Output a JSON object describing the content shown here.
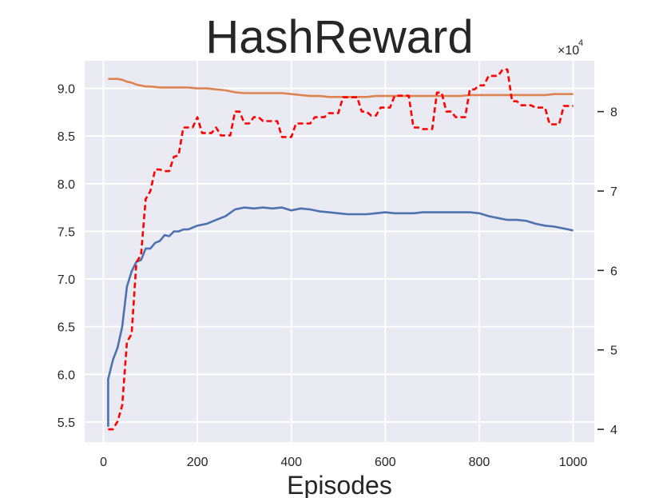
{
  "chart_data": {
    "type": "line",
    "title": "HashReward",
    "xlabel": "Episodes",
    "ylabel": "",
    "y2label": "",
    "right_axis_multiplier": "×10",
    "right_axis_multiplier_exp": "4",
    "xlim": [
      -40,
      1045
    ],
    "ylim": [
      5.29,
      9.29
    ],
    "y2lim": [
      38400,
      86400
    ],
    "xticks": [
      0,
      200,
      400,
      600,
      800,
      1000
    ],
    "yticks": [
      5.5,
      6.0,
      6.5,
      7.0,
      7.5,
      8.0,
      8.5,
      9.0
    ],
    "y2ticks": [
      40000,
      50000,
      60000,
      70000,
      80000
    ],
    "ytick_labels": [
      "5.5",
      "6.0",
      "6.5",
      "7.0",
      "7.5",
      "8.0",
      "8.5",
      "9.0"
    ],
    "y2tick_labels": [
      "4",
      "5",
      "6",
      "7",
      "8"
    ],
    "xtick_labels": [
      "0",
      "200",
      "400",
      "600",
      "800",
      "1000"
    ],
    "grid": true,
    "background": "#eaeaf2",
    "series": [
      {
        "axis": "left",
        "color": "#4c72b0",
        "style": "solid",
        "x": [
          10,
          10,
          20,
          30,
          40,
          50,
          60,
          70,
          80,
          90,
          100,
          110,
          120,
          130,
          140,
          150,
          160,
          170,
          180,
          190,
          200,
          220,
          240,
          260,
          280,
          300,
          320,
          340,
          360,
          380,
          400,
          420,
          440,
          460,
          480,
          500,
          520,
          540,
          560,
          580,
          600,
          620,
          640,
          660,
          680,
          700,
          720,
          740,
          760,
          780,
          800,
          820,
          840,
          860,
          880,
          900,
          920,
          940,
          960,
          980,
          1000
        ],
        "values": [
          5.45,
          5.95,
          6.15,
          6.28,
          6.5,
          6.92,
          7.08,
          7.18,
          7.2,
          7.32,
          7.32,
          7.38,
          7.4,
          7.46,
          7.45,
          7.5,
          7.5,
          7.52,
          7.52,
          7.54,
          7.56,
          7.58,
          7.62,
          7.66,
          7.73,
          7.75,
          7.74,
          7.75,
          7.74,
          7.75,
          7.72,
          7.74,
          7.73,
          7.71,
          7.7,
          7.69,
          7.68,
          7.68,
          7.68,
          7.69,
          7.7,
          7.69,
          7.69,
          7.69,
          7.7,
          7.7,
          7.7,
          7.7,
          7.7,
          7.7,
          7.69,
          7.66,
          7.64,
          7.62,
          7.62,
          7.61,
          7.58,
          7.56,
          7.55,
          7.53,
          7.51
        ]
      },
      {
        "axis": "left",
        "color": "#dd8452",
        "style": "solid",
        "x": [
          10,
          20,
          30,
          40,
          50,
          60,
          70,
          80,
          90,
          100,
          120,
          140,
          160,
          180,
          200,
          220,
          240,
          260,
          280,
          300,
          320,
          340,
          360,
          380,
          400,
          420,
          440,
          460,
          480,
          500,
          520,
          540,
          560,
          580,
          600,
          620,
          640,
          660,
          680,
          700,
          720,
          740,
          760,
          780,
          800,
          820,
          840,
          860,
          880,
          900,
          920,
          940,
          960,
          980,
          1000
        ],
        "values": [
          9.1,
          9.1,
          9.1,
          9.09,
          9.07,
          9.06,
          9.04,
          9.03,
          9.02,
          9.02,
          9.01,
          9.01,
          9.01,
          9.01,
          9.0,
          9.0,
          8.99,
          8.98,
          8.96,
          8.95,
          8.95,
          8.95,
          8.95,
          8.95,
          8.94,
          8.93,
          8.92,
          8.92,
          8.91,
          8.91,
          8.91,
          8.91,
          8.91,
          8.92,
          8.92,
          8.92,
          8.92,
          8.92,
          8.92,
          8.92,
          8.92,
          8.92,
          8.92,
          8.93,
          8.93,
          8.93,
          8.93,
          8.93,
          8.93,
          8.93,
          8.93,
          8.93,
          8.94,
          8.94,
          8.94
        ]
      },
      {
        "axis": "right",
        "color": "#ff0000",
        "style": "dashed",
        "x": [
          10,
          20,
          30,
          40,
          50,
          60,
          70,
          80,
          90,
          100,
          110,
          120,
          130,
          140,
          150,
          160,
          170,
          180,
          190,
          200,
          210,
          220,
          230,
          240,
          250,
          260,
          270,
          280,
          290,
          300,
          310,
          320,
          330,
          340,
          350,
          360,
          370,
          380,
          390,
          400,
          410,
          420,
          430,
          440,
          450,
          460,
          470,
          480,
          490,
          500,
          510,
          520,
          530,
          540,
          550,
          560,
          570,
          580,
          590,
          600,
          610,
          620,
          630,
          640,
          650,
          660,
          670,
          680,
          690,
          700,
          710,
          720,
          730,
          740,
          750,
          760,
          770,
          780,
          790,
          800,
          810,
          820,
          830,
          840,
          850,
          860,
          870,
          880,
          890,
          900,
          910,
          920,
          930,
          940,
          950,
          960,
          970,
          980,
          990,
          1000
        ],
        "values": [
          40000,
          40000,
          41000,
          43000,
          51000,
          52000,
          61000,
          62000,
          69000,
          70000,
          72700,
          72700,
          72500,
          72500,
          74300,
          74500,
          78000,
          78000,
          78000,
          79300,
          77300,
          77300,
          77300,
          78000,
          77000,
          77000,
          77000,
          80000,
          80000,
          78500,
          78500,
          79300,
          79300,
          78800,
          78800,
          78800,
          78800,
          76800,
          76800,
          76800,
          78500,
          78500,
          78500,
          78500,
          79300,
          79300,
          79300,
          79800,
          79800,
          79800,
          81800,
          81800,
          81800,
          81800,
          80000,
          80000,
          79500,
          79500,
          80500,
          80500,
          80500,
          82000,
          82000,
          82000,
          82000,
          78000,
          78000,
          77800,
          77800,
          77800,
          82400,
          82400,
          80000,
          80000,
          79300,
          79300,
          79300,
          82800,
          82800,
          83300,
          83300,
          84500,
          84500,
          84500,
          85300,
          85300,
          81300,
          81300,
          80800,
          80800,
          80800,
          80500,
          80500,
          80500,
          78400,
          78400,
          78400,
          80700,
          80700,
          80700
        ]
      }
    ]
  }
}
